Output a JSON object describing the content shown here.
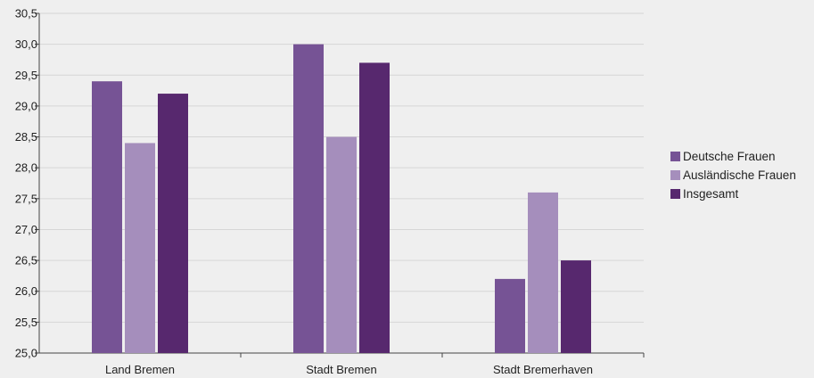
{
  "chart_data": {
    "type": "bar",
    "categories": [
      "Land Bremen",
      "Stadt Bremen",
      "Stadt Bremerhaven"
    ],
    "series": [
      {
        "name": "Deutsche Frauen",
        "values": [
          29.4,
          30.0,
          26.2
        ],
        "color": "#765395"
      },
      {
        "name": "Ausländische Frauen",
        "values": [
          28.4,
          28.5,
          27.6
        ],
        "color": "#a58ebc"
      },
      {
        "name": "Insgesamt",
        "values": [
          29.2,
          29.7,
          26.5
        ],
        "color": "#57286e"
      }
    ],
    "ylim": [
      25.0,
      30.5
    ],
    "yticks": [
      "25,0",
      "25,5",
      "26,0",
      "26,5",
      "27,0",
      "27,5",
      "28,0",
      "28,5",
      "29,0",
      "29,5",
      "30,0",
      "30,5"
    ],
    "grid": true,
    "legend_position": "right",
    "background": "#efefef",
    "title": "",
    "xlabel": "",
    "ylabel": ""
  }
}
